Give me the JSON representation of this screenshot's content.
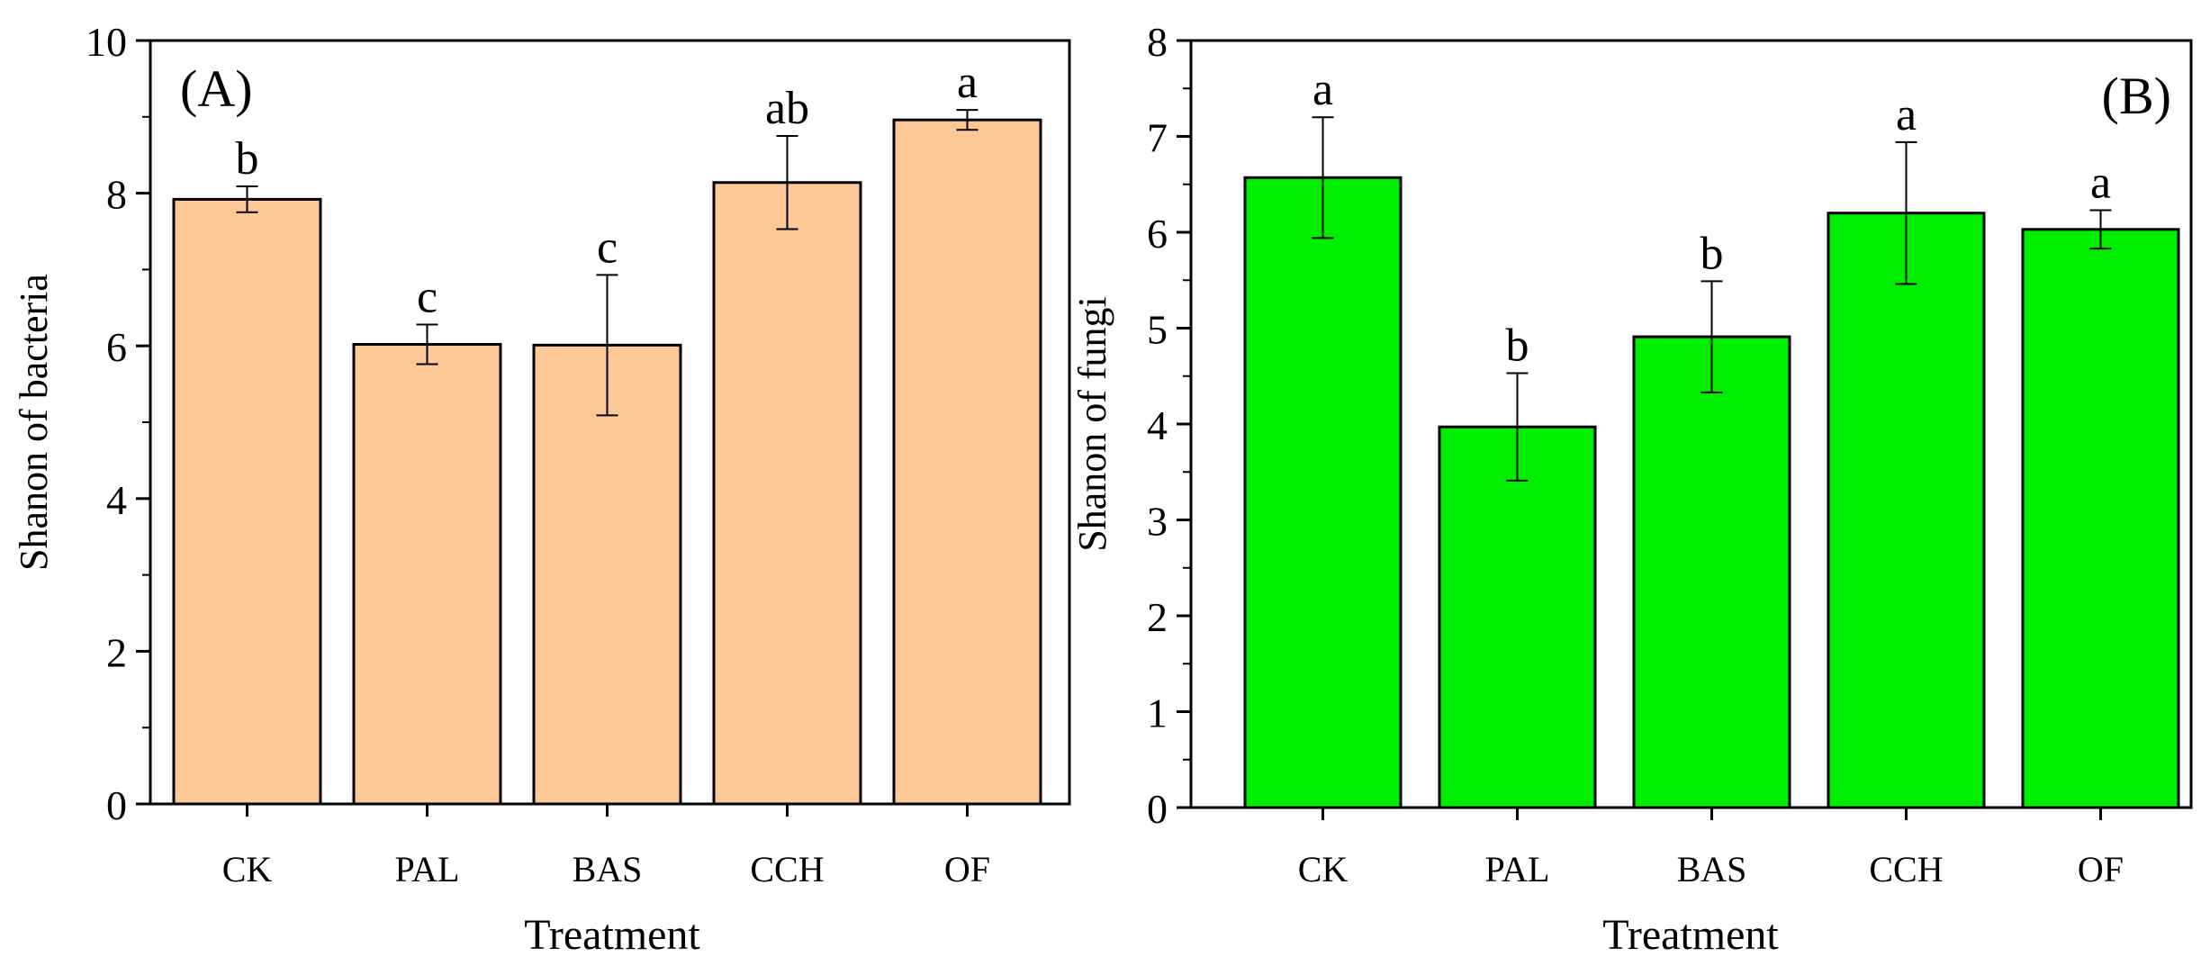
{
  "chart_data": [
    {
      "type": "bar",
      "panel_label": "(A)",
      "title": "",
      "xlabel": "Treatment",
      "ylabel": "Shanon of bacteria",
      "categories": [
        "CK",
        "PAL",
        "BAS",
        "CCH",
        "OF"
      ],
      "values": [
        7.92,
        6.02,
        6.01,
        8.14,
        8.96
      ],
      "errors": [
        0.17,
        0.26,
        0.92,
        0.61,
        0.13
      ],
      "significance": [
        "b",
        "c",
        "c",
        "ab",
        "a"
      ],
      "ylim": [
        0,
        10
      ],
      "yticks": [
        0,
        2,
        4,
        6,
        8,
        10
      ],
      "ytick_labels": [
        "0",
        "2",
        "4",
        "6",
        "8",
        "10"
      ],
      "bar_color": "#FDC896",
      "legend": "none"
    },
    {
      "type": "bar",
      "panel_label": "(B)",
      "title": "",
      "xlabel": "Treatment",
      "ylabel": "Shanon of fungi",
      "categories": [
        "CK",
        "PAL",
        "BAS",
        "CCH",
        "OF"
      ],
      "values": [
        6.57,
        3.97,
        4.91,
        6.2,
        6.03
      ],
      "errors": [
        0.63,
        0.56,
        0.58,
        0.74,
        0.2
      ],
      "significance": [
        "a",
        "b",
        "b",
        "a",
        "a"
      ],
      "ylim": [
        0,
        8
      ],
      "yticks": [
        0,
        1,
        2,
        3,
        4,
        5,
        6,
        7,
        8
      ],
      "ytick_labels": [
        "0",
        "1",
        "2",
        "3",
        "4",
        "5",
        "6",
        "7",
        "8"
      ],
      "bar_color": "#00EE00",
      "legend": "none"
    }
  ]
}
